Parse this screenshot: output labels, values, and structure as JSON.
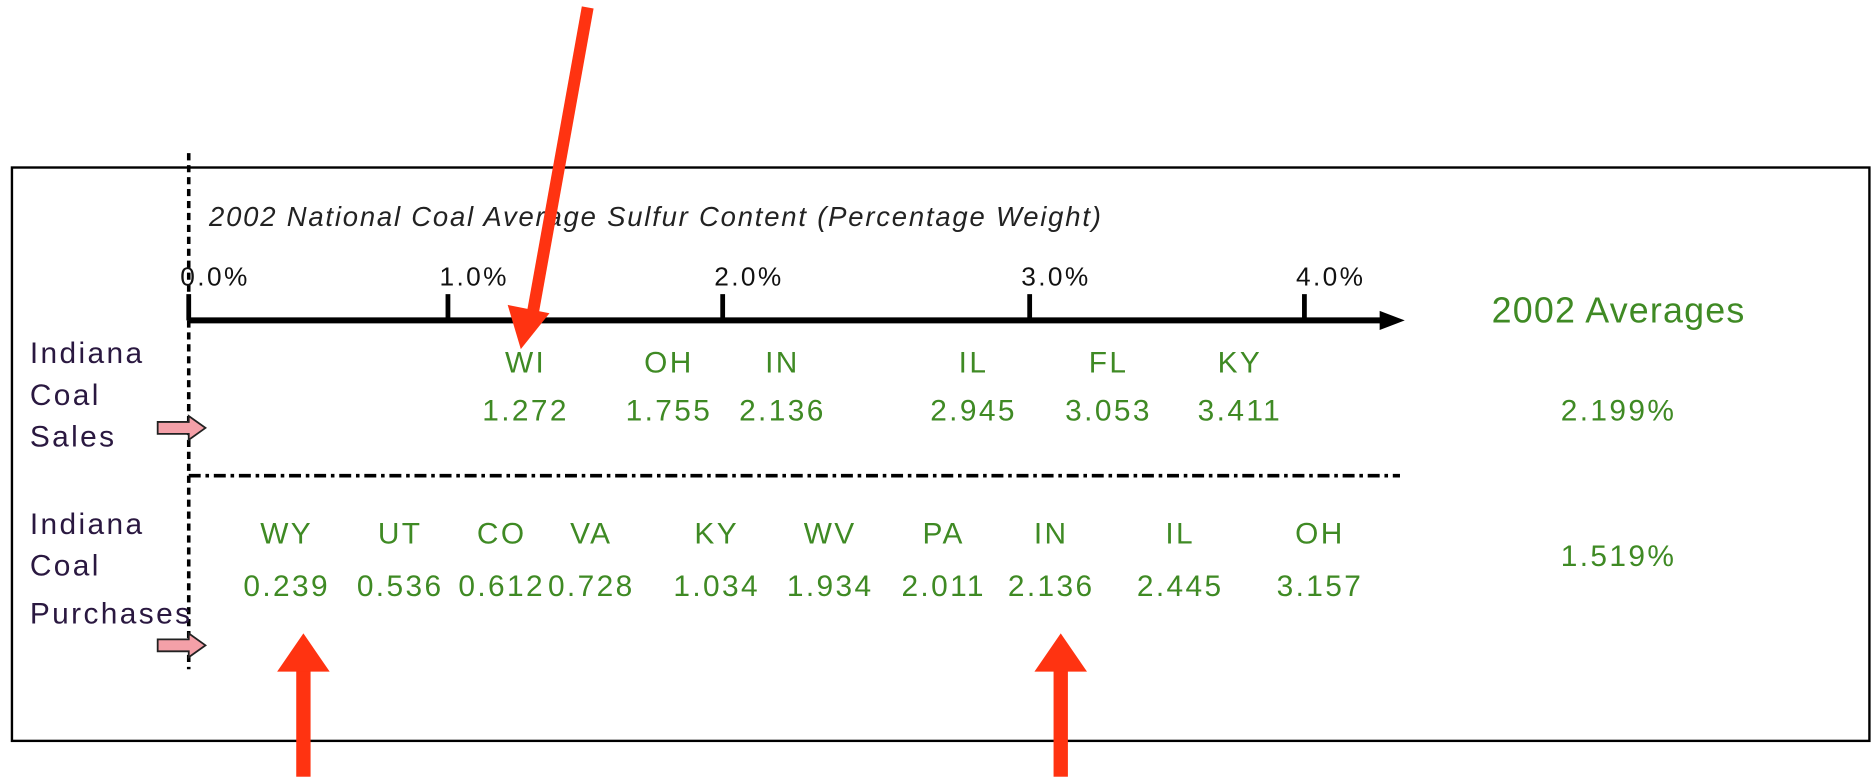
{
  "axis": {
    "title": "2002 National Coal Average Sulfur Content (Percentage Weight)",
    "ticks": [
      "0.0%",
      "1.0%",
      "2.0%",
      "3.0%",
      "4.0%"
    ]
  },
  "averages_title": "2002 Averages",
  "rows": [
    {
      "label": [
        "Indiana",
        "Coal",
        "Sales"
      ],
      "items": [
        {
          "state": "WI",
          "value": "1.272"
        },
        {
          "state": "OH",
          "value": "1.755"
        },
        {
          "state": "IN",
          "value": "2.136"
        },
        {
          "state": "IL",
          "value": "2.945"
        },
        {
          "state": "FL",
          "value": "3.053"
        },
        {
          "state": "KY",
          "value": "3.411"
        }
      ],
      "average": "2.199%"
    },
    {
      "label": [
        "Indiana",
        "Coal",
        "Purchases"
      ],
      "items": [
        {
          "state": "WY",
          "value": "0.239"
        },
        {
          "state": "UT",
          "value": "0.536"
        },
        {
          "state": "CO",
          "value": "0.612"
        },
        {
          "state": "VA",
          "value": "0.728"
        },
        {
          "state": "KY",
          "value": "1.034"
        },
        {
          "state": "WV",
          "value": "1.934"
        },
        {
          "state": "PA",
          "value": "2.011"
        },
        {
          "state": "IN",
          "value": "2.136"
        },
        {
          "state": "IL",
          "value": "2.445"
        },
        {
          "state": "OH",
          "value": "3.157"
        }
      ],
      "average": "1.519%"
    }
  ]
}
